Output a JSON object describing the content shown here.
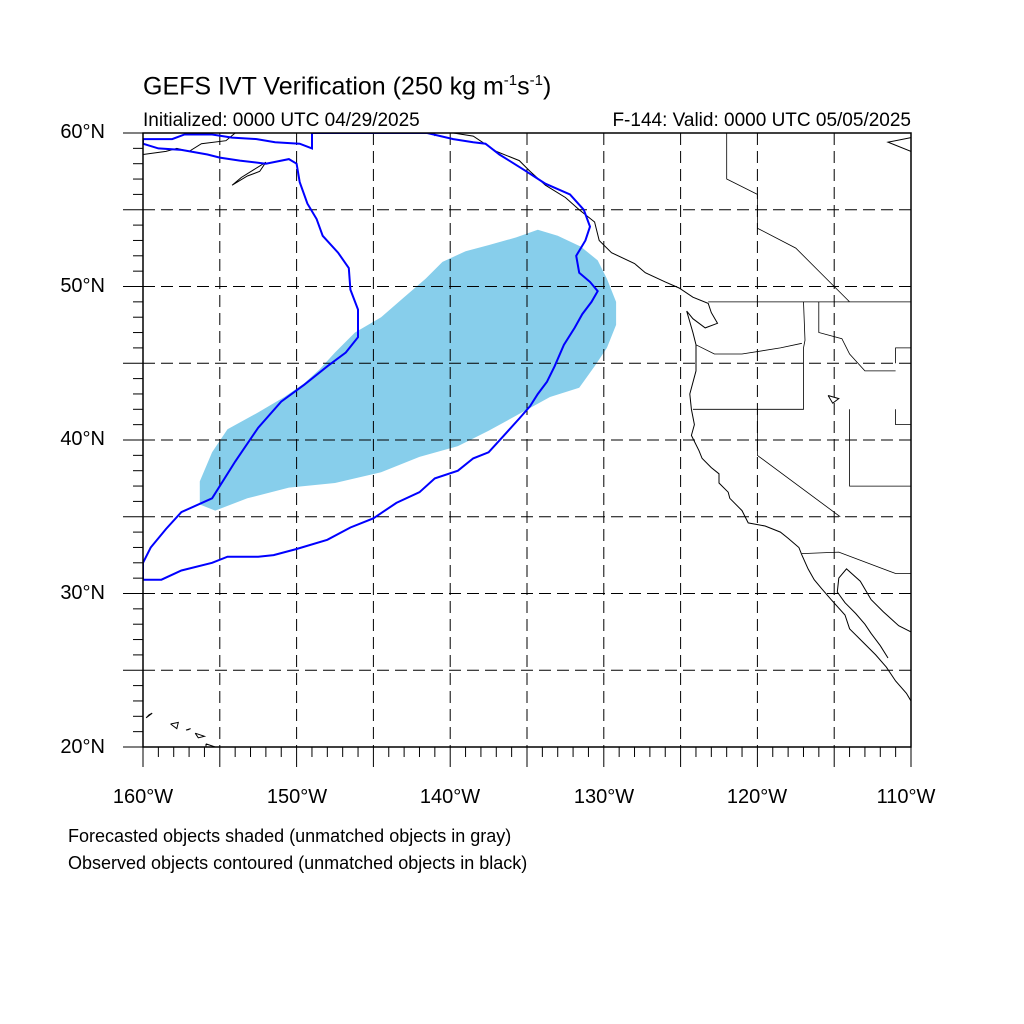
{
  "title": {
    "main": "GEFS IVT Verification (250 kg m",
    "unit_exp1": "-1",
    "unit_mid": "s",
    "unit_exp2": "-1",
    "unit_close": ")"
  },
  "initialized": "Initialized: 0000 UTC 04/29/2025",
  "valid": "F-144: Valid: 0000 UTC 05/05/2025",
  "latitude_labels": [
    "60°N",
    "50°N",
    "40°N",
    "30°N",
    "20°N"
  ],
  "longitude_labels": [
    "160°W",
    "150°W",
    "140°W",
    "130°W",
    "120°W",
    "110°W"
  ],
  "notes": [
    "Forecasted objects shaded (unmatched objects in gray)",
    "Observed objects contoured (unmatched objects in black)"
  ],
  "map": {
    "lon_range": [
      -160,
      -110
    ],
    "lat_range": [
      20,
      60
    ],
    "grid_lons": [
      -155,
      -150,
      -145,
      -140,
      -135,
      -130,
      -125,
      -120,
      -115
    ],
    "grid_lats": [
      25,
      30,
      35,
      40,
      45,
      50,
      55
    ],
    "colors": {
      "forecast_fill": "#87ceeb",
      "observed_contour": "#0000ff",
      "coastline": "#000000"
    },
    "forecast_object": [
      [
        -155.3,
        35.4
      ],
      [
        -153.2,
        36.2
      ],
      [
        -150.5,
        36.9
      ],
      [
        -147.5,
        37.2
      ],
      [
        -144.5,
        37.9
      ],
      [
        -142.0,
        38.9
      ],
      [
        -139.5,
        39.6
      ],
      [
        -137.5,
        40.6
      ],
      [
        -135.5,
        41.7
      ],
      [
        -133.5,
        42.8
      ],
      [
        -131.6,
        43.4
      ],
      [
        -130.6,
        44.8
      ],
      [
        -129.8,
        46.0
      ],
      [
        -129.2,
        47.5
      ],
      [
        -129.2,
        49.0
      ],
      [
        -129.8,
        50.5
      ],
      [
        -130.4,
        51.7
      ],
      [
        -131.5,
        52.6
      ],
      [
        -133.0,
        53.3
      ],
      [
        -134.3,
        53.7
      ],
      [
        -135.7,
        53.2
      ],
      [
        -137.5,
        52.7
      ],
      [
        -139.0,
        52.3
      ],
      [
        -140.5,
        51.6
      ],
      [
        -141.6,
        50.5
      ],
      [
        -143.0,
        49.3
      ],
      [
        -144.5,
        48.0
      ],
      [
        -146.2,
        47.0
      ],
      [
        -147.5,
        45.7
      ],
      [
        -148.5,
        44.6
      ],
      [
        -149.5,
        43.7
      ],
      [
        -150.8,
        42.8
      ],
      [
        -152.5,
        41.8
      ],
      [
        -154.5,
        40.7
      ],
      [
        -155.5,
        39.2
      ],
      [
        -156.3,
        37.3
      ],
      [
        -156.3,
        35.8
      ]
    ],
    "observed_object": [
      [
        -160.0,
        30.9
      ],
      [
        -158.8,
        30.9
      ],
      [
        -157.5,
        31.5
      ],
      [
        -155.5,
        32.0
      ],
      [
        -154.5,
        32.4
      ],
      [
        -152.5,
        32.4
      ],
      [
        -151.5,
        32.5
      ],
      [
        -150.0,
        32.9
      ],
      [
        -148.0,
        33.5
      ],
      [
        -146.5,
        34.3
      ],
      [
        -145.0,
        34.9
      ],
      [
        -143.5,
        35.9
      ],
      [
        -142.0,
        36.6
      ],
      [
        -141.0,
        37.5
      ],
      [
        -139.5,
        38.0
      ],
      [
        -138.5,
        38.8
      ],
      [
        -137.5,
        39.2
      ],
      [
        -136.5,
        40.3
      ],
      [
        -135.5,
        41.4
      ],
      [
        -134.8,
        42.2
      ],
      [
        -134.3,
        43.0
      ],
      [
        -133.7,
        43.8
      ],
      [
        -133.2,
        44.8
      ],
      [
        -132.6,
        46.2
      ],
      [
        -131.9,
        47.3
      ],
      [
        -131.4,
        48.2
      ],
      [
        -130.8,
        49.0
      ],
      [
        -130.4,
        49.7
      ],
      [
        -130.9,
        50.3
      ],
      [
        -131.6,
        50.9
      ],
      [
        -131.8,
        52.0
      ],
      [
        -131.2,
        53.0
      ],
      [
        -130.9,
        53.9
      ],
      [
        -131.3,
        55.0
      ],
      [
        -132.2,
        56.0
      ],
      [
        -133.8,
        56.7
      ],
      [
        -135.2,
        57.6
      ],
      [
        -136.8,
        58.6
      ],
      [
        -137.7,
        59.3
      ],
      [
        -138.5,
        59.4
      ],
      [
        -139.8,
        59.6
      ],
      [
        -141.5,
        60.0
      ],
      [
        -149.0,
        60.0
      ],
      [
        -149.0,
        59.0
      ],
      [
        -149.8,
        59.3
      ],
      [
        -151.4,
        59.4
      ],
      [
        -152.6,
        59.6
      ],
      [
        -154.2,
        59.7
      ],
      [
        -155.5,
        59.9
      ],
      [
        -157.3,
        59.9
      ],
      [
        -158.1,
        59.6
      ],
      [
        -160.0,
        59.6
      ],
      [
        -160.0,
        59.3
      ],
      [
        -159.0,
        59.0
      ],
      [
        -157.5,
        58.9
      ],
      [
        -155.8,
        58.6
      ],
      [
        -155.0,
        58.4
      ],
      [
        -153.7,
        58.2
      ],
      [
        -152.0,
        58.0
      ],
      [
        -150.5,
        58.3
      ],
      [
        -150.0,
        58.0
      ],
      [
        -149.8,
        56.8
      ],
      [
        -149.3,
        55.4
      ],
      [
        -148.7,
        54.4
      ],
      [
        -148.3,
        53.3
      ],
      [
        -147.3,
        52.2
      ],
      [
        -146.6,
        51.2
      ],
      [
        -146.5,
        49.8
      ],
      [
        -146.0,
        48.5
      ],
      [
        -146.0,
        46.7
      ],
      [
        -146.8,
        45.7
      ],
      [
        -148.0,
        44.8
      ],
      [
        -149.5,
        43.6
      ],
      [
        -151.0,
        42.5
      ],
      [
        -152.5,
        40.8
      ],
      [
        -154.0,
        38.6
      ],
      [
        -155.5,
        36.2
      ],
      [
        -157.5,
        35.3
      ],
      [
        -158.5,
        34.2
      ],
      [
        -159.5,
        33.0
      ],
      [
        -160.0,
        32.0
      ]
    ],
    "coastlines": [
      [
        [
          -139.8,
          60.0
        ],
        [
          -138.5,
          59.8
        ],
        [
          -137.0,
          58.8
        ],
        [
          -135.5,
          58.2
        ],
        [
          -134.8,
          57.5
        ],
        [
          -133.8,
          56.6
        ],
        [
          -132.5,
          55.8
        ],
        [
          -131.6,
          55.0
        ],
        [
          -130.6,
          54.2
        ],
        [
          -130.3,
          53.0
        ],
        [
          -129.5,
          52.2
        ],
        [
          -128.0,
          51.5
        ],
        [
          -127.3,
          50.9
        ],
        [
          -126.0,
          50.3
        ],
        [
          -125.1,
          49.9
        ],
        [
          -124.2,
          49.3
        ],
        [
          -123.2,
          48.9
        ],
        [
          -123.0,
          48.3
        ],
        [
          -122.6,
          47.6
        ],
        [
          -123.4,
          47.3
        ],
        [
          -124.2,
          47.9
        ],
        [
          -124.6,
          48.4
        ],
        [
          -124.2,
          47.0
        ],
        [
          -124.0,
          46.2
        ],
        [
          -124.0,
          44.5
        ],
        [
          -124.4,
          43.0
        ],
        [
          -124.3,
          42.0
        ],
        [
          -124.1,
          41.0
        ],
        [
          -124.3,
          40.3
        ],
        [
          -123.8,
          39.3
        ],
        [
          -123.6,
          38.8
        ],
        [
          -123.0,
          38.2
        ],
        [
          -122.5,
          37.8
        ],
        [
          -122.5,
          37.2
        ],
        [
          -121.9,
          36.6
        ],
        [
          -121.8,
          36.2
        ],
        [
          -121.0,
          35.4
        ],
        [
          -120.6,
          34.6
        ],
        [
          -119.5,
          34.4
        ],
        [
          -118.5,
          34.0
        ],
        [
          -118.0,
          33.6
        ],
        [
          -117.3,
          33.0
        ],
        [
          -117.1,
          32.5
        ],
        [
          -116.7,
          31.6
        ],
        [
          -116.3,
          30.9
        ],
        [
          -115.8,
          30.3
        ],
        [
          -115.2,
          29.6
        ],
        [
          -114.3,
          28.6
        ],
        [
          -114.0,
          27.7
        ],
        [
          -113.3,
          27.0
        ],
        [
          -112.3,
          26.0
        ],
        [
          -111.6,
          25.2
        ],
        [
          -111.0,
          24.3
        ],
        [
          -110.3,
          23.5
        ],
        [
          -110.0,
          23.0
        ]
      ],
      [
        [
          -110.0,
          27.5
        ],
        [
          -110.8,
          27.9
        ],
        [
          -111.8,
          28.8
        ],
        [
          -112.6,
          29.6
        ],
        [
          -113.3,
          30.8
        ],
        [
          -114.2,
          31.6
        ],
        [
          -114.7,
          31.0
        ],
        [
          -114.8,
          30.1
        ],
        [
          -114.3,
          29.4
        ],
        [
          -113.6,
          28.7
        ],
        [
          -113.0,
          28.0
        ],
        [
          -112.6,
          27.4
        ],
        [
          -112.0,
          26.6
        ],
        [
          -111.5,
          25.8
        ]
      ],
      [
        [
          -110.0,
          59.7
        ],
        [
          -111.5,
          59.4
        ],
        [
          -110.0,
          58.8
        ]
      ],
      [
        [
          -160.0,
          58.6
        ],
        [
          -158.5,
          58.8
        ],
        [
          -157.8,
          59.0
        ],
        [
          -157.0,
          58.8
        ],
        [
          -156.2,
          59.3
        ],
        [
          -154.6,
          59.5
        ],
        [
          -154.0,
          60.0
        ]
      ],
      [
        [
          -152.0,
          58.1
        ],
        [
          -152.8,
          57.6
        ],
        [
          -153.6,
          57.1
        ],
        [
          -154.2,
          56.6
        ],
        [
          -153.2,
          57.2
        ],
        [
          -152.4,
          57.5
        ],
        [
          -152.0,
          58.1
        ]
      ],
      [
        [
          -159.8,
          21.9
        ],
        [
          -159.4,
          22.2
        ],
        [
          -159.6,
          22.1
        ],
        [
          -159.8,
          21.9
        ]
      ],
      [
        [
          -158.2,
          21.5
        ],
        [
          -157.8,
          21.2
        ],
        [
          -157.7,
          21.6
        ],
        [
          -158.2,
          21.5
        ]
      ],
      [
        [
          -157.2,
          21.1
        ],
        [
          -156.9,
          21.2
        ],
        [
          -157.1,
          21.1
        ]
      ],
      [
        [
          -156.6,
          20.9
        ],
        [
          -156.0,
          20.7
        ],
        [
          -156.4,
          20.6
        ],
        [
          -156.6,
          20.9
        ]
      ],
      [
        [
          -155.9,
          20.2
        ],
        [
          -155.0,
          19.9
        ],
        [
          -154.8,
          19.5
        ],
        [
          -155.5,
          19.0
        ],
        [
          -155.9,
          19.5
        ],
        [
          -155.9,
          20.2
        ]
      ],
      [
        [
          -115.4,
          42.9
        ],
        [
          -114.7,
          42.7
        ],
        [
          -115.1,
          42.4
        ],
        [
          -115.4,
          42.9
        ]
      ]
    ],
    "borders": [
      [
        [
          -123.2,
          49.0
        ],
        [
          -117.0,
          49.0
        ],
        [
          -110.0,
          49.0
        ]
      ],
      [
        [
          -124.2,
          42.0
        ],
        [
          -117.0,
          42.0
        ],
        [
          -117.0,
          46.0
        ],
        [
          -116.9,
          46.5
        ],
        [
          -117.0,
          49.0
        ]
      ],
      [
        [
          -120.0,
          42.0
        ],
        [
          -120.0,
          39.0
        ],
        [
          -114.6,
          35.0
        ]
      ],
      [
        [
          -117.1,
          32.6
        ],
        [
          -114.7,
          32.7
        ],
        [
          -111.0,
          31.3
        ],
        [
          -110.0,
          31.3
        ]
      ],
      [
        [
          -114.0,
          42.0
        ],
        [
          -114.0,
          37.0
        ],
        [
          -110.0,
          37.0
        ]
      ],
      [
        [
          -111.0,
          42.0
        ],
        [
          -111.0,
          41.0
        ],
        [
          -110.0,
          41.0
        ]
      ],
      [
        [
          -111.0,
          45.0
        ],
        [
          -111.0,
          46.0
        ],
        [
          -110.0,
          46.0
        ]
      ],
      [
        [
          -116.0,
          49.0
        ],
        [
          -116.0,
          47.0
        ],
        [
          -114.5,
          46.6
        ],
        [
          -114.0,
          45.6
        ],
        [
          -113.0,
          44.5
        ],
        [
          -111.0,
          44.5
        ]
      ],
      [
        [
          -117.1,
          46.3
        ],
        [
          -118.5,
          46.0
        ],
        [
          -121.0,
          45.6
        ],
        [
          -122.8,
          45.6
        ],
        [
          -124.0,
          46.2
        ]
      ],
      [
        [
          -122.0,
          60.0
        ],
        [
          -122.0,
          57.0
        ],
        [
          -120.0,
          56.0
        ],
        [
          -120.0,
          53.8
        ],
        [
          -117.5,
          52.5
        ],
        [
          -116.0,
          51.0
        ],
        [
          -114.0,
          49.0
        ]
      ],
      [
        [
          -141.0,
          60.0
        ],
        [
          -141.0,
          59.8
        ]
      ]
    ]
  }
}
